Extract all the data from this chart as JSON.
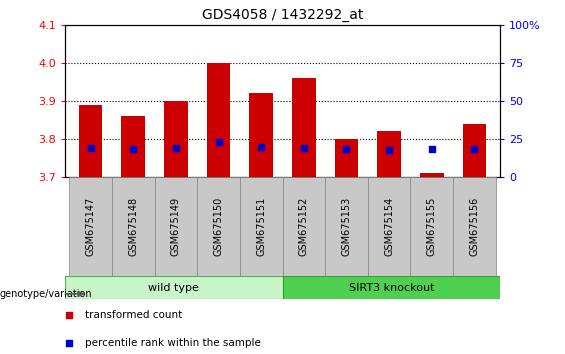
{
  "title": "GDS4058 / 1432292_at",
  "samples": [
    "GSM675147",
    "GSM675148",
    "GSM675149",
    "GSM675150",
    "GSM675151",
    "GSM675152",
    "GSM675153",
    "GSM675154",
    "GSM675155",
    "GSM675156"
  ],
  "transformed_count": [
    3.89,
    3.86,
    3.9,
    4.0,
    3.92,
    3.96,
    3.8,
    3.82,
    3.71,
    3.84
  ],
  "blue_marker_y": [
    3.776,
    3.774,
    3.775,
    3.792,
    3.778,
    3.776,
    3.773,
    3.77,
    3.773,
    3.773
  ],
  "blue_only_index": 8,
  "ylim_left": [
    3.7,
    4.1
  ],
  "yticks_left": [
    3.7,
    3.8,
    3.9,
    4.0,
    4.1
  ],
  "yticks_right": [
    0,
    25,
    50,
    75,
    100
  ],
  "groups": [
    {
      "label": "wild type",
      "start": 0,
      "end": 5,
      "bg_color": "#c8f5c8",
      "edge_color": "#50b050"
    },
    {
      "label": "SIRT3 knockout",
      "start": 5,
      "end": 10,
      "bg_color": "#50d050",
      "edge_color": "#30a030"
    }
  ],
  "bar_color": "#cc0000",
  "blue_color": "#0000cc",
  "group_label": "genotype/variation",
  "legend_items": [
    {
      "label": "transformed count",
      "color": "#cc0000"
    },
    {
      "label": "percentile rank within the sample",
      "color": "#0000cc"
    }
  ],
  "bar_width": 0.55,
  "tick_bg_color": "#c8c8c8",
  "tick_edge_color": "#808080"
}
